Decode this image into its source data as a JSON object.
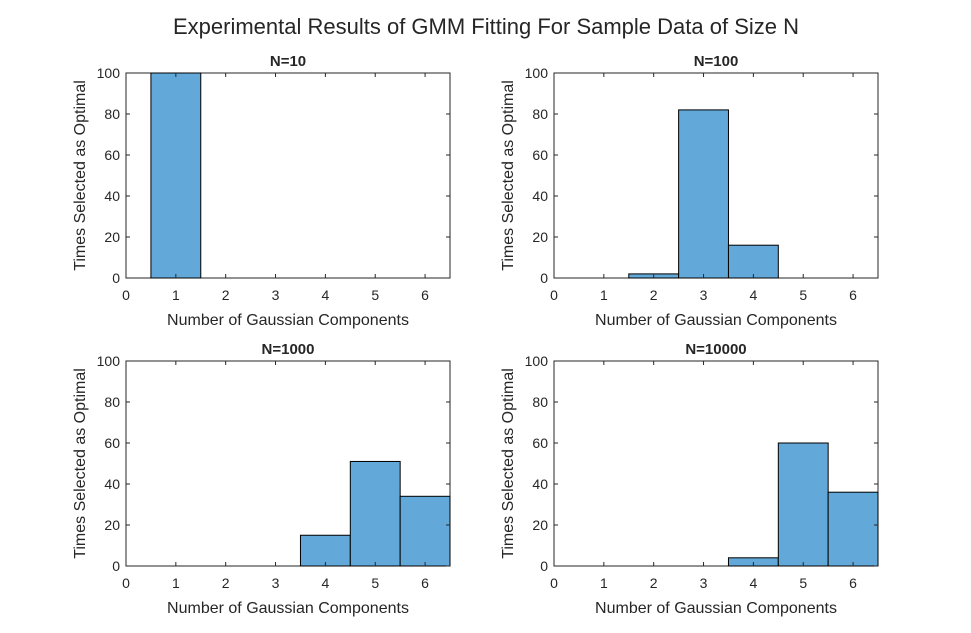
{
  "figure": {
    "title": "Experimental Results of GMM Fitting For Sample Data of Size N"
  },
  "chart_data": [
    {
      "type": "bar",
      "title": "N=10",
      "xlabel": "Number of Gaussian Components",
      "ylabel": "Times Selected as Optimal",
      "categories": [
        1,
        2,
        3,
        4,
        5,
        6
      ],
      "values": [
        100,
        0,
        0,
        0,
        0,
        0
      ],
      "xlim": [
        0,
        6.5
      ],
      "ylim": [
        0,
        100
      ],
      "xticks": [
        0,
        1,
        2,
        3,
        4,
        5,
        6
      ],
      "yticks": [
        0,
        20,
        40,
        60,
        80,
        100
      ],
      "grid": false,
      "bar_color": "#62a8d8"
    },
    {
      "type": "bar",
      "title": "N=100",
      "xlabel": "Number of Gaussian Components",
      "ylabel": "Times Selected as Optimal",
      "categories": [
        1,
        2,
        3,
        4,
        5,
        6
      ],
      "values": [
        0,
        2,
        82,
        16,
        0,
        0
      ],
      "xlim": [
        0,
        6.5
      ],
      "ylim": [
        0,
        100
      ],
      "xticks": [
        0,
        1,
        2,
        3,
        4,
        5,
        6
      ],
      "yticks": [
        0,
        20,
        40,
        60,
        80,
        100
      ],
      "grid": false,
      "bar_color": "#62a8d8"
    },
    {
      "type": "bar",
      "title": "N=1000",
      "xlabel": "Number of Gaussian Components",
      "ylabel": "Times Selected as Optimal",
      "categories": [
        1,
        2,
        3,
        4,
        5,
        6
      ],
      "values": [
        0,
        0,
        0,
        15,
        51,
        34
      ],
      "xlim": [
        0,
        6.5
      ],
      "ylim": [
        0,
        100
      ],
      "xticks": [
        0,
        1,
        2,
        3,
        4,
        5,
        6
      ],
      "yticks": [
        0,
        20,
        40,
        60,
        80,
        100
      ],
      "grid": false,
      "bar_color": "#62a8d8"
    },
    {
      "type": "bar",
      "title": "N=10000",
      "xlabel": "Number of Gaussian Components",
      "ylabel": "Times Selected as Optimal",
      "categories": [
        1,
        2,
        3,
        4,
        5,
        6
      ],
      "values": [
        0,
        0,
        0,
        4,
        60,
        36
      ],
      "xlim": [
        0,
        6.5
      ],
      "ylim": [
        0,
        100
      ],
      "xticks": [
        0,
        1,
        2,
        3,
        4,
        5,
        6
      ],
      "yticks": [
        0,
        20,
        40,
        60,
        80,
        100
      ],
      "grid": false,
      "bar_color": "#62a8d8"
    }
  ]
}
